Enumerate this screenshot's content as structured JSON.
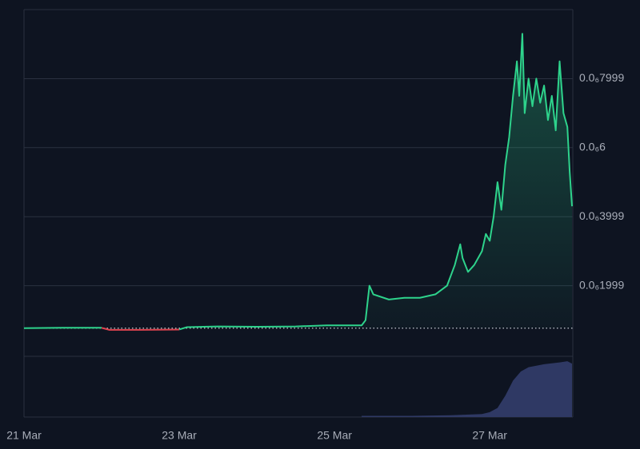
{
  "chart_data": {
    "type": "line",
    "x": [
      21.0,
      21.5,
      22.0,
      22.1,
      22.5,
      23.0,
      23.1,
      23.5,
      24.0,
      24.5,
      24.9,
      25.35,
      25.4,
      25.45,
      25.5,
      25.7,
      25.9,
      26.1,
      26.3,
      26.45,
      26.55,
      26.62,
      26.65,
      26.72,
      26.8,
      26.9,
      26.95,
      27.0,
      27.05,
      27.1,
      27.15,
      27.2,
      27.25,
      27.3,
      27.35,
      27.38,
      27.42,
      27.45,
      27.5,
      27.55,
      27.6,
      27.65,
      27.7,
      27.75,
      27.8,
      27.85,
      27.9,
      27.95,
      28.0,
      28.03,
      28.06
    ],
    "series": [
      {
        "color": "#2ed38c",
        "down_color": "#e0434f",
        "values": [
          7.7e-08,
          7.8e-08,
          7.8e-08,
          7.2e-08,
          7.2e-08,
          7.3e-08,
          8e-08,
          8.2e-08,
          8.1e-08,
          8.2e-08,
          8.5e-08,
          8.5e-08,
          1e-07,
          2e-07,
          1.75e-07,
          1.6e-07,
          1.65e-07,
          1.65e-07,
          1.75e-07,
          2e-07,
          2.6e-07,
          3.2e-07,
          2.8e-07,
          2.4e-07,
          2.6e-07,
          3e-07,
          3.5e-07,
          3.3e-07,
          4e-07,
          5e-07,
          4.2e-07,
          5.5e-07,
          6.3e-07,
          7.5e-07,
          8.5e-07,
          7.5e-07,
          9.3e-07,
          7e-07,
          8e-07,
          7.2e-07,
          8e-07,
          7.3e-07,
          7.8e-07,
          6.8e-07,
          7.5e-07,
          6.5e-07,
          8.5e-07,
          7e-07,
          6.6e-07,
          5.3e-07,
          4.3e-07
        ]
      }
    ],
    "baseline": 7.7e-08,
    "volume": {
      "color": "#2f3964",
      "x": [
        25.35,
        26.0,
        26.5,
        26.9,
        27.0,
        27.1,
        27.2,
        27.3,
        27.4,
        27.5,
        27.7,
        27.9,
        28.0,
        28.06
      ],
      "values": [
        2,
        2,
        3,
        5,
        8,
        15,
        35,
        60,
        75,
        82,
        87,
        90,
        92,
        88
      ],
      "ylim": [
        0,
        100
      ]
    },
    "xlim": [
      21,
      28.07
    ],
    "xticks": [
      {
        "value": 21,
        "label": "21 Mar"
      },
      {
        "value": 23,
        "label": "23 Mar"
      },
      {
        "value": 25,
        "label": "25 Mar"
      },
      {
        "value": 27,
        "label": "27 Mar"
      }
    ],
    "ylim": [
      0,
      1e-06
    ],
    "yticks": [
      {
        "value": 7.999e-07,
        "label": "0.0₆7999"
      },
      {
        "value": 6e-07,
        "label": "0.0₆6"
      },
      {
        "value": 3.999e-07,
        "label": "0.0₆3999"
      },
      {
        "value": 1.999e-07,
        "label": "0.0₆1999"
      }
    ],
    "grid": true
  }
}
